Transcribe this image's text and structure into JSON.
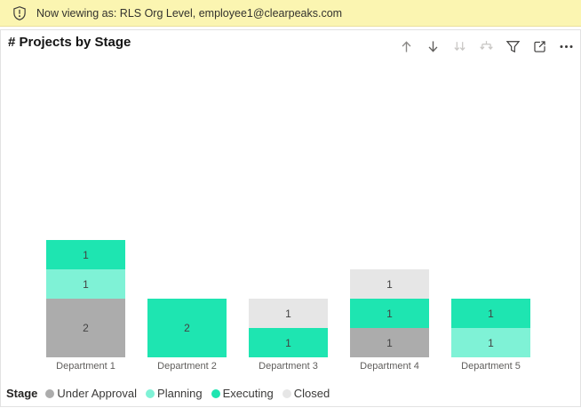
{
  "banner": {
    "icon": "shield-exclamation-icon",
    "text": "Now viewing as: RLS Org Level, employee1@clearpeaks.com",
    "background": "#FBF5B1"
  },
  "visual": {
    "title": "# Projects by Stage",
    "toolbar": {
      "icons": [
        {
          "name": "drill-up-icon",
          "enabled": true
        },
        {
          "name": "drill-down-icon",
          "enabled": true
        },
        {
          "name": "show-next-level-icon",
          "enabled": false
        },
        {
          "name": "expand-all-levels-icon",
          "enabled": false
        },
        {
          "name": "filter-icon",
          "enabled": true
        },
        {
          "name": "focus-mode-icon",
          "enabled": true
        },
        {
          "name": "more-options-icon",
          "enabled": true
        }
      ]
    }
  },
  "chart_data": {
    "type": "bar",
    "stacked": true,
    "title": "# Projects by Stage",
    "categories": [
      "Department 1",
      "Department 2",
      "Department 3",
      "Department 4",
      "Department 5"
    ],
    "series": [
      {
        "name": "Under Approval",
        "color": "#ACACAC",
        "values": [
          2,
          0,
          0,
          1,
          0
        ]
      },
      {
        "name": "Planning",
        "color": "#7FF2D6",
        "values": [
          1,
          0,
          0,
          0,
          1
        ]
      },
      {
        "name": "Executing",
        "color": "#1EE5B1",
        "values": [
          1,
          2,
          1,
          1,
          1
        ]
      },
      {
        "name": "Closed",
        "color": "#E6E6E6",
        "values": [
          0,
          0,
          1,
          1,
          0
        ]
      }
    ],
    "legend_title": "Stage",
    "legend_position": "bottom",
    "value_labels": true,
    "y_axis_visible": false,
    "x_axis_visible": true,
    "ylim": [
      0,
      4
    ]
  }
}
